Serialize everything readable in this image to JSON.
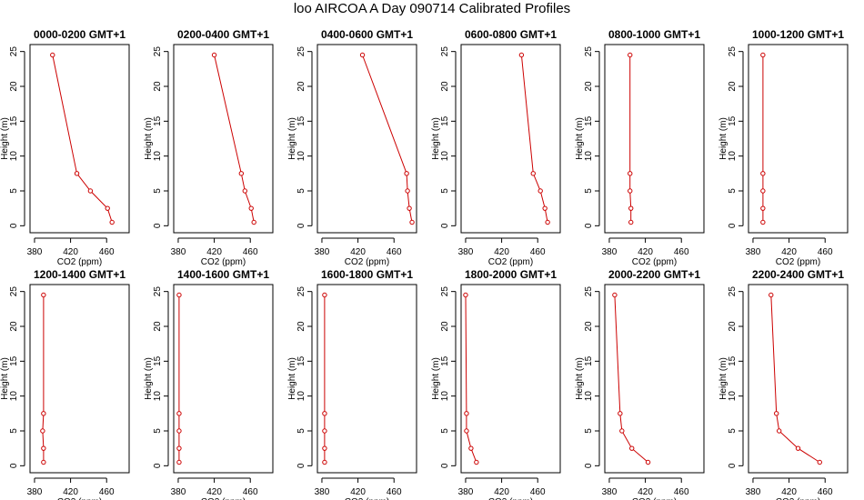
{
  "title": "loo AIRCOA A  Day 090714  Calibrated Profiles",
  "chart_data": {
    "type": "line",
    "xlabel": "CO2 (ppm)",
    "ylabel": "Height (m)",
    "xlim": [
      375,
      485
    ],
    "ylim": [
      -1,
      26
    ],
    "xticks": [
      380,
      420,
      460
    ],
    "yticks": [
      0,
      5,
      10,
      15,
      20,
      25
    ],
    "line_color": "#cc0000",
    "grid": false,
    "panels": [
      {
        "title": "0000-0200 GMT+1",
        "series": [
          {
            "x": [
              400,
              427,
              442,
              461,
              466
            ],
            "y": [
              24.5,
              7.5,
              5,
              2.5,
              0.5
            ]
          }
        ]
      },
      {
        "title": "0200-0400 GMT+1",
        "series": [
          {
            "x": [
              420,
              450,
              454,
              461,
              464
            ],
            "y": [
              24.5,
              7.5,
              5,
              2.5,
              0.5
            ]
          }
        ]
      },
      {
        "title": "0400-0600 GMT+1",
        "series": [
          {
            "x": [
              425,
              474,
              475,
              477,
              480
            ],
            "y": [
              24.5,
              7.5,
              5,
              2.5,
              0.5
            ]
          }
        ]
      },
      {
        "title": "0600-0800 GMT+1",
        "series": [
          {
            "x": [
              442,
              455,
              463,
              468,
              471
            ],
            "y": [
              24.5,
              7.5,
              5,
              2.5,
              0.5
            ]
          }
        ]
      },
      {
        "title": "0800-1000 GMT+1",
        "series": [
          {
            "x": [
              403,
              403,
              403,
              404,
              404
            ],
            "y": [
              24.5,
              7.5,
              5,
              2.5,
              0.5
            ]
          }
        ]
      },
      {
        "title": "1000-1200 GMT+1",
        "series": [
          {
            "x": [
              391,
              391,
              391,
              391,
              391
            ],
            "y": [
              24.5,
              7.5,
              5,
              2.5,
              0.5
            ]
          }
        ]
      },
      {
        "title": "1200-1400 GMT+1",
        "series": [
          {
            "x": [
              390,
              390,
              389,
              390,
              390
            ],
            "y": [
              24.5,
              7.5,
              5,
              2.5,
              0.5
            ]
          }
        ]
      },
      {
        "title": "1400-1600 GMT+1",
        "series": [
          {
            "x": [
              381,
              381,
              381,
              381,
              381
            ],
            "y": [
              24.5,
              7.5,
              5,
              2.5,
              0.5
            ]
          }
        ]
      },
      {
        "title": "1600-1800 GMT+1",
        "series": [
          {
            "x": [
              383,
              383,
              383,
              383,
              383
            ],
            "y": [
              24.5,
              7.5,
              5,
              2.5,
              0.5
            ]
          }
        ]
      },
      {
        "title": "1800-2000 GMT+1",
        "series": [
          {
            "x": [
              380,
              381,
              381,
              386,
              392
            ],
            "y": [
              24.5,
              7.5,
              5,
              2.5,
              0.5
            ]
          }
        ]
      },
      {
        "title": "2000-2200 GMT+1",
        "series": [
          {
            "x": [
              386,
              392,
              394,
              405,
              423
            ],
            "y": [
              24.5,
              7.5,
              5,
              2.5,
              0.5
            ]
          }
        ]
      },
      {
        "title": "2200-2400 GMT+1",
        "series": [
          {
            "x": [
              400,
              406,
              409,
              430,
              454
            ],
            "y": [
              24.5,
              7.5,
              5,
              2.5,
              0.5
            ]
          }
        ]
      }
    ]
  }
}
